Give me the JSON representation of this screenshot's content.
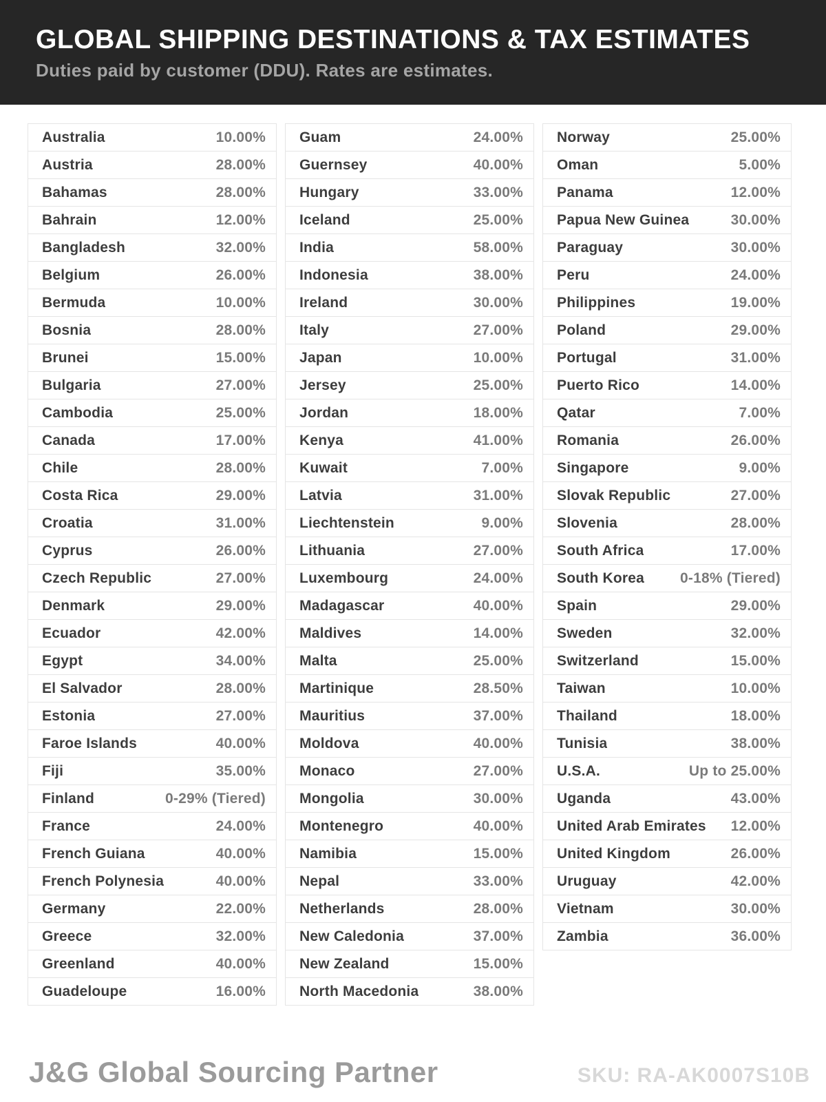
{
  "header": {
    "title": "GLOBAL SHIPPING DESTINATIONS & TAX ESTIMATES",
    "subtitle": "Duties paid by customer (DDU). Rates are estimates."
  },
  "columns": [
    [
      {
        "country": "Australia",
        "rate": "10.00%"
      },
      {
        "country": "Austria",
        "rate": "28.00%"
      },
      {
        "country": "Bahamas",
        "rate": "28.00%"
      },
      {
        "country": "Bahrain",
        "rate": "12.00%"
      },
      {
        "country": "Bangladesh",
        "rate": "32.00%"
      },
      {
        "country": "Belgium",
        "rate": "26.00%"
      },
      {
        "country": "Bermuda",
        "rate": "10.00%"
      },
      {
        "country": "Bosnia",
        "rate": "28.00%"
      },
      {
        "country": "Brunei",
        "rate": "15.00%"
      },
      {
        "country": "Bulgaria",
        "rate": "27.00%"
      },
      {
        "country": "Cambodia",
        "rate": "25.00%"
      },
      {
        "country": "Canada",
        "rate": "17.00%"
      },
      {
        "country": "Chile",
        "rate": "28.00%"
      },
      {
        "country": "Costa Rica",
        "rate": "29.00%"
      },
      {
        "country": "Croatia",
        "rate": "31.00%"
      },
      {
        "country": "Cyprus",
        "rate": "26.00%"
      },
      {
        "country": "Czech Republic",
        "rate": "27.00%"
      },
      {
        "country": "Denmark",
        "rate": "29.00%"
      },
      {
        "country": "Ecuador",
        "rate": "42.00%"
      },
      {
        "country": "Egypt",
        "rate": "34.00%"
      },
      {
        "country": "El Salvador",
        "rate": "28.00%"
      },
      {
        "country": "Estonia",
        "rate": "27.00%"
      },
      {
        "country": "Faroe Islands",
        "rate": "40.00%"
      },
      {
        "country": "Fiji",
        "rate": "35.00%"
      },
      {
        "country": "Finland",
        "rate": "0-29% (Tiered)"
      },
      {
        "country": "France",
        "rate": "24.00%"
      },
      {
        "country": "French Guiana",
        "rate": "40.00%"
      },
      {
        "country": "French Polynesia",
        "rate": "40.00%"
      },
      {
        "country": "Germany",
        "rate": "22.00%"
      },
      {
        "country": "Greece",
        "rate": "32.00%"
      },
      {
        "country": "Greenland",
        "rate": "40.00%"
      },
      {
        "country": "Guadeloupe",
        "rate": "16.00%"
      }
    ],
    [
      {
        "country": "Guam",
        "rate": "24.00%"
      },
      {
        "country": "Guernsey",
        "rate": "40.00%"
      },
      {
        "country": "Hungary",
        "rate": "33.00%"
      },
      {
        "country": "Iceland",
        "rate": "25.00%"
      },
      {
        "country": "India",
        "rate": "58.00%"
      },
      {
        "country": "Indonesia",
        "rate": "38.00%"
      },
      {
        "country": "Ireland",
        "rate": "30.00%"
      },
      {
        "country": "Italy",
        "rate": "27.00%"
      },
      {
        "country": "Japan",
        "rate": "10.00%"
      },
      {
        "country": "Jersey",
        "rate": "25.00%"
      },
      {
        "country": "Jordan",
        "rate": "18.00%"
      },
      {
        "country": "Kenya",
        "rate": "41.00%"
      },
      {
        "country": "Kuwait",
        "rate": "7.00%"
      },
      {
        "country": "Latvia",
        "rate": "31.00%"
      },
      {
        "country": "Liechtenstein",
        "rate": "9.00%"
      },
      {
        "country": "Lithuania",
        "rate": "27.00%"
      },
      {
        "country": "Luxembourg",
        "rate": "24.00%"
      },
      {
        "country": "Madagascar",
        "rate": "40.00%"
      },
      {
        "country": "Maldives",
        "rate": "14.00%"
      },
      {
        "country": "Malta",
        "rate": "25.00%"
      },
      {
        "country": "Martinique",
        "rate": "28.50%"
      },
      {
        "country": "Mauritius",
        "rate": "37.00%"
      },
      {
        "country": "Moldova",
        "rate": "40.00%"
      },
      {
        "country": "Monaco",
        "rate": "27.00%"
      },
      {
        "country": "Mongolia",
        "rate": "30.00%"
      },
      {
        "country": "Montenegro",
        "rate": "40.00%"
      },
      {
        "country": "Namibia",
        "rate": "15.00%"
      },
      {
        "country": "Nepal",
        "rate": "33.00%"
      },
      {
        "country": "Netherlands",
        "rate": "28.00%"
      },
      {
        "country": "New Caledonia",
        "rate": "37.00%"
      },
      {
        "country": "New Zealand",
        "rate": "15.00%"
      },
      {
        "country": "North Macedonia",
        "rate": "38.00%"
      }
    ],
    [
      {
        "country": "Norway",
        "rate": "25.00%"
      },
      {
        "country": "Oman",
        "rate": "5.00%"
      },
      {
        "country": "Panama",
        "rate": "12.00%"
      },
      {
        "country": "Papua New Guinea",
        "rate": "30.00%"
      },
      {
        "country": "Paraguay",
        "rate": "30.00%"
      },
      {
        "country": "Peru",
        "rate": "24.00%"
      },
      {
        "country": "Philippines",
        "rate": "19.00%"
      },
      {
        "country": "Poland",
        "rate": "29.00%"
      },
      {
        "country": "Portugal",
        "rate": "31.00%"
      },
      {
        "country": "Puerto Rico",
        "rate": "14.00%"
      },
      {
        "country": "Qatar",
        "rate": "7.00%"
      },
      {
        "country": "Romania",
        "rate": "26.00%"
      },
      {
        "country": "Singapore",
        "rate": "9.00%"
      },
      {
        "country": "Slovak Republic",
        "rate": "27.00%"
      },
      {
        "country": "Slovenia",
        "rate": "28.00%"
      },
      {
        "country": "South Africa",
        "rate": "17.00%"
      },
      {
        "country": "South Korea",
        "rate": "0-18% (Tiered)"
      },
      {
        "country": "Spain",
        "rate": "29.00%"
      },
      {
        "country": "Sweden",
        "rate": "32.00%"
      },
      {
        "country": "Switzerland",
        "rate": "15.00%"
      },
      {
        "country": "Taiwan",
        "rate": "10.00%"
      },
      {
        "country": "Thailand",
        "rate": "18.00%"
      },
      {
        "country": "Tunisia",
        "rate": "38.00%"
      },
      {
        "country": "U.S.A.",
        "rate": "Up to 25.00%"
      },
      {
        "country": "Uganda",
        "rate": "43.00%"
      },
      {
        "country": "United Arab Emirates",
        "rate": "12.00%"
      },
      {
        "country": "United Kingdom",
        "rate": "26.00%"
      },
      {
        "country": "Uruguay",
        "rate": "42.00%"
      },
      {
        "country": "Vietnam",
        "rate": "30.00%"
      },
      {
        "country": "Zambia",
        "rate": "36.00%"
      }
    ]
  ],
  "footer": {
    "brand": "J&G Global Sourcing Partner",
    "sku": "SKU: RA-AK0007S10B"
  },
  "colors": {
    "header_bg": "#262626",
    "title": "#ffffff",
    "subtitle": "#a5a5a5",
    "country_text": "#3d3d3d",
    "rate_text": "#7a7a7a",
    "row_border": "#e5e5e5",
    "brand_text": "#9b9b9b",
    "sku_text": "#d8d8d8"
  }
}
